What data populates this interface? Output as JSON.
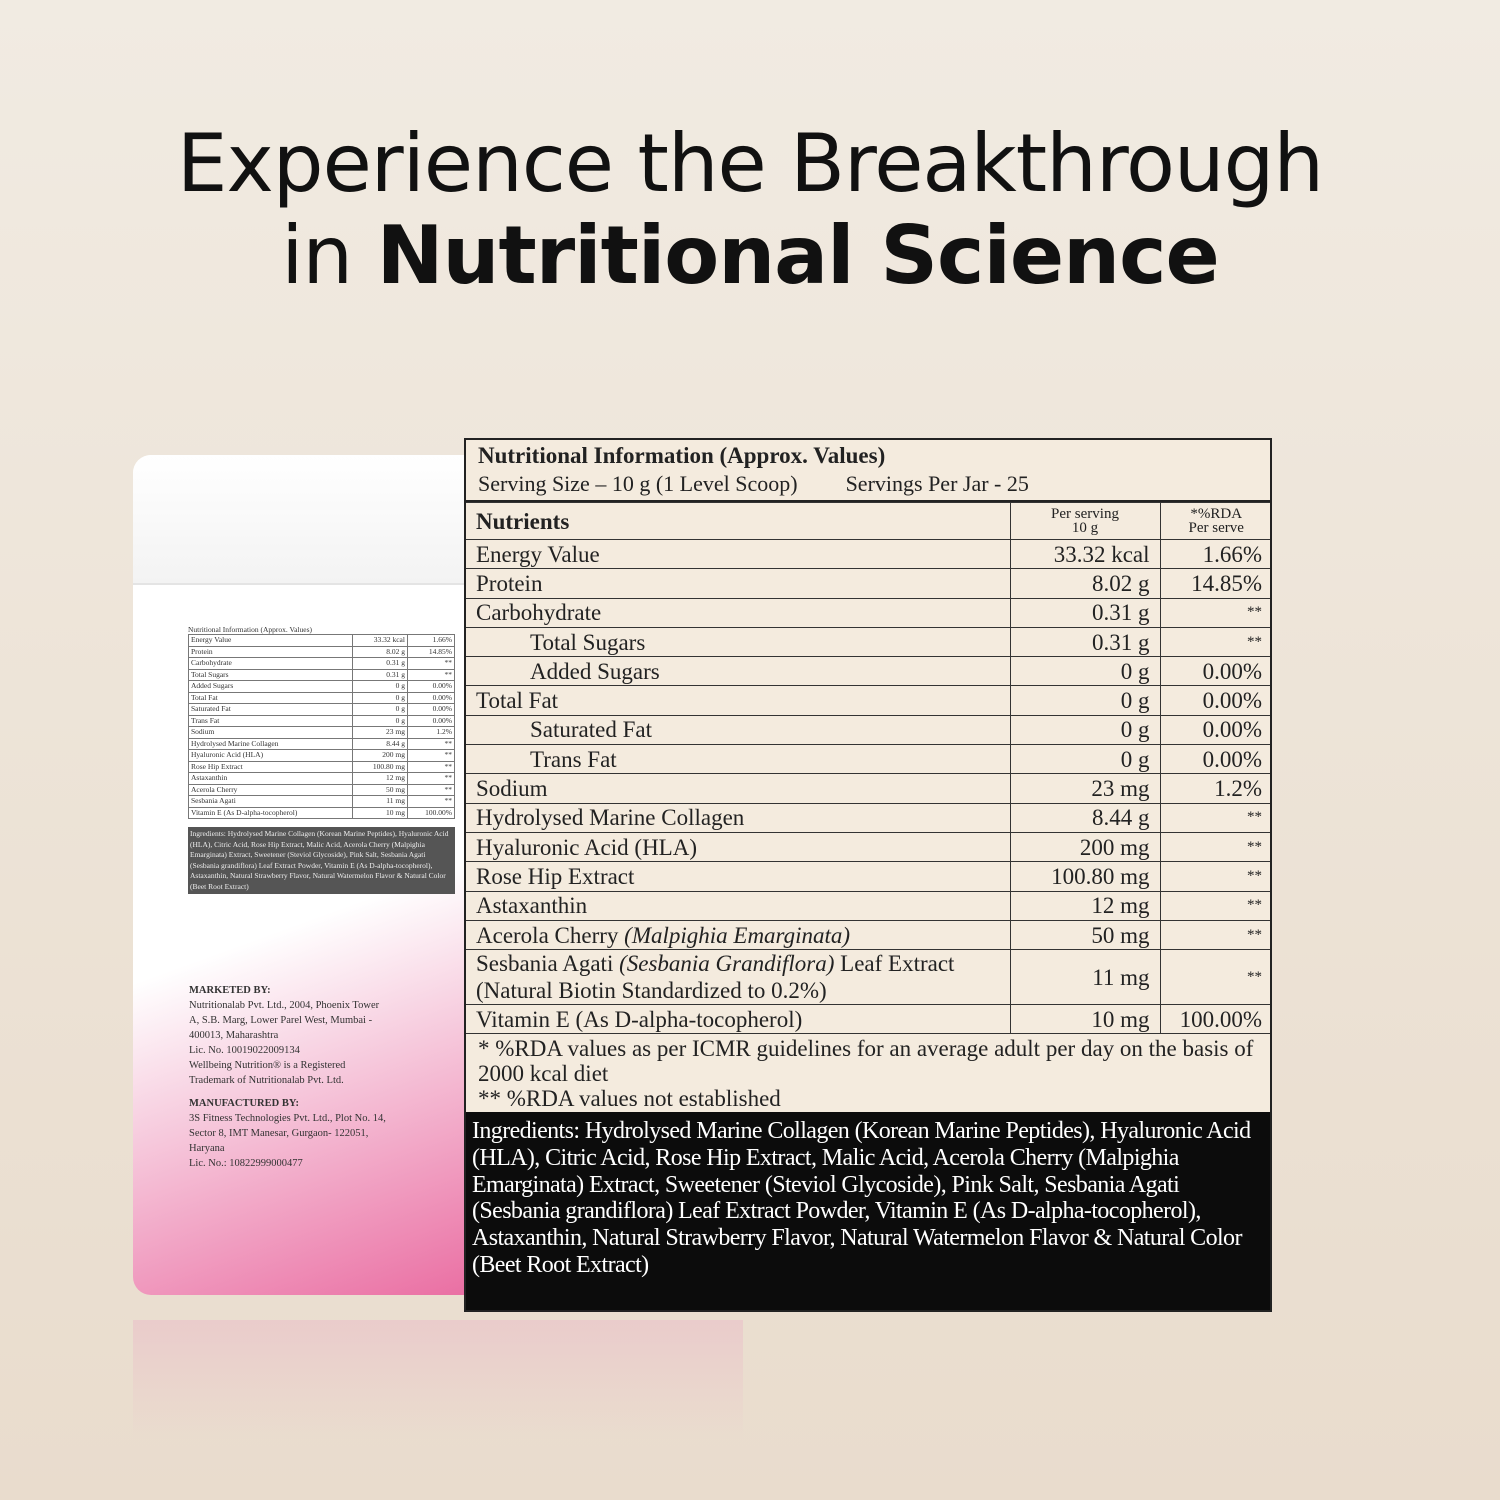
{
  "headline": {
    "line1": "Experience the Breakthrough",
    "line2_prefix": "in ",
    "line2_bold": "Nutritional Science"
  },
  "panel": {
    "title": "Nutritional Information (Approx. Values)",
    "serving_size": "Serving Size – 10 g (1 Level Scoop)",
    "servings_per_jar": "Servings Per Jar - 25",
    "columns": {
      "nutrients": "Nutrients",
      "per_serving_1": "Per serving",
      "per_serving_2": "10 g",
      "rda_1": "*%RDA",
      "rda_2": "Per serve"
    },
    "rows": [
      {
        "name": "Energy Value",
        "value": "33.32 kcal",
        "rda": "1.66%"
      },
      {
        "name": "Protein",
        "value": "8.02 g",
        "rda": "14.85%"
      },
      {
        "name": "Carbohydrate",
        "value": "0.31 g",
        "rda": "**"
      },
      {
        "name": "Total Sugars",
        "value": "0.31 g",
        "rda": "**"
      },
      {
        "name": "Added Sugars",
        "value": "0 g",
        "rda": "0.00%"
      },
      {
        "name": "Total Fat",
        "value": "0 g",
        "rda": "0.00%"
      },
      {
        "name": "Saturated Fat",
        "value": "0 g",
        "rda": "0.00%"
      },
      {
        "name": "Trans Fat",
        "value": "0 g",
        "rda": "0.00%"
      },
      {
        "name": "Sodium",
        "value": "23 mg",
        "rda": "1.2%"
      },
      {
        "name": "Hydrolysed Marine Collagen",
        "value": "8.44 g",
        "rda": "**"
      },
      {
        "name": "Hyaluronic Acid (HLA)",
        "value": "200 mg",
        "rda": "**"
      },
      {
        "name": "Rose Hip Extract",
        "value": "100.80 mg",
        "rda": "**"
      },
      {
        "name": "Astaxanthin",
        "value": "12 mg",
        "rda": "**"
      },
      {
        "name": "Acerola Cherry",
        "name_italic": "(Malpighia Emarginata)",
        "value": "50 mg",
        "rda": "**"
      },
      {
        "name": "Sesbania Agati",
        "name_italic": "(Sesbania Grandiflora)",
        "name_suffix": "Leaf Extract",
        "name_line2": "(Natural Biotin Standardized to 0.2%)",
        "value": "11 mg",
        "rda": "**"
      },
      {
        "name": "Vitamin E (As D-alpha-tocopherol)",
        "value": "10 mg",
        "rda": "100.00%"
      }
    ],
    "footnote1": "* %RDA values as per ICMR guidelines for an average adult per day on the basis of 2000 kcal diet",
    "footnote2": "** %RDA values not established",
    "ingredients": "Ingredients: Hydrolysed Marine Collagen (Korean Marine Peptides), Hyaluronic Acid (HLA), Citric Acid, Rose Hip Extract, Malic Acid, Acerola Cherry (Malpighia Emarginata) Extract, Sweetener (Steviol Glycoside), Pink Salt, Sesbania Agati (Sesbania grandiflora) Leaf Extract Powder, Vitamin E (As D-alpha-tocopherol), Astaxanthin, Natural Strawberry Flavor, Natural Watermelon Flavor & Natural Color (Beet Root Extract)"
  },
  "jar": {
    "marketed_by": "MARKETED BY:",
    "marketer": "Nutritionalab Pvt. Ltd., 2004, Phoenix Tower A, S.B. Marg, Lower Parel West, Mumbai - 400013, Maharashtra",
    "lic1": "Lic. No. 10019022009134",
    "trademark": "Wellbeing Nutrition® is a Registered Trademark of Nutritionalab Pvt. Ltd.",
    "manufactured_by": "MANUFACTURED BY:",
    "manufacturer": "3S Fitness Technologies Pvt. Ltd., Plot No. 14, Sector 8, IMT Manesar, Gurgaon- 122051, Haryana",
    "lic2": "Lic. No.: 10822999000477"
  }
}
